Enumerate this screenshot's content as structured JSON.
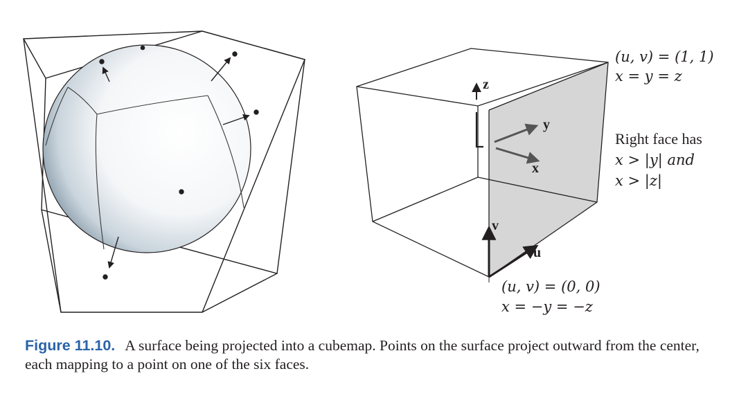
{
  "right_diagram": {
    "top_label_line1": "(u, v) = (1, 1)",
    "top_label_line2": "x = y = z",
    "face_note_line1": "Right face has",
    "face_note_line2": "x > |y| and",
    "face_note_line3": "x > |z|",
    "bottom_label_line1": "(u, v) = (0, 0)",
    "bottom_label_line2": "x = −y = −z",
    "axis_z": "z",
    "axis_y": "y",
    "axis_x": "x",
    "axis_v": "v",
    "axis_u": "u"
  },
  "caption": {
    "label": "Figure 11.10.",
    "text": "A surface being projected into a cubemap. Points on the surface project outward from the center, each mapping to a point on one of the six faces."
  },
  "colors": {
    "caption_label": "#2b63a8",
    "face_fill": "#d6d6d7",
    "line": "#231f20"
  }
}
